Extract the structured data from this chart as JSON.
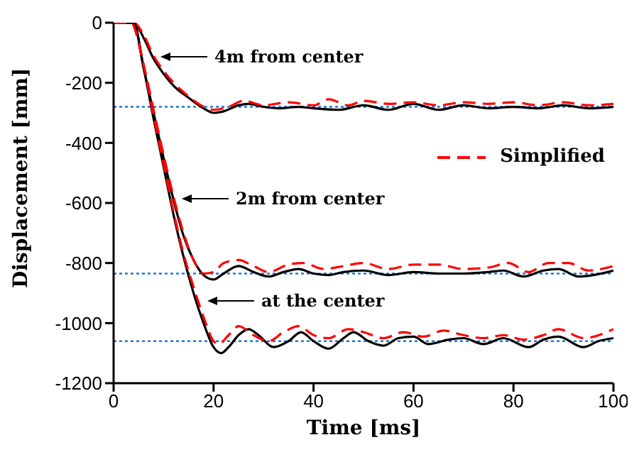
{
  "chart_data": {
    "type": "line",
    "xlabel": "Time [ms]",
    "ylabel": "Displacement [mm]",
    "xlim": [
      0,
      100
    ],
    "ylim": [
      -1200,
      0
    ],
    "xticks": [
      0,
      20,
      40,
      60,
      80,
      100
    ],
    "yticks": [
      -1200,
      -1000,
      -800,
      -600,
      -400,
      -200,
      0
    ],
    "marker": "none",
    "legend": "right",
    "series": [
      {
        "color": "#000000",
        "line_style": "solid",
        "x": [
          0,
          4,
          6,
          8,
          10,
          12,
          15,
          18,
          20,
          22,
          25,
          27,
          30,
          33,
          37,
          40,
          45,
          50,
          55,
          60,
          65,
          70,
          75,
          80,
          85,
          90,
          95,
          100
        ],
        "values": [
          0,
          0,
          -50,
          -120,
          -170,
          -210,
          -250,
          -285,
          -300,
          -295,
          -275,
          -270,
          -280,
          -285,
          -280,
          -285,
          -290,
          -275,
          -290,
          -270,
          -290,
          -275,
          -285,
          -280,
          -285,
          -275,
          -285,
          -280
        ]
      },
      {
        "name": "Simplified",
        "color": "#ff0000",
        "line_style": "dashed",
        "x": [
          0,
          4,
          6,
          8,
          10,
          12,
          15,
          18,
          20,
          23,
          26,
          30,
          35,
          40,
          43,
          47,
          50,
          55,
          60,
          65,
          70,
          75,
          80,
          85,
          90,
          95,
          100
        ],
        "values": [
          0,
          0,
          -40,
          -110,
          -160,
          -200,
          -245,
          -280,
          -290,
          -280,
          -260,
          -275,
          -265,
          -275,
          -255,
          -275,
          -260,
          -270,
          -265,
          -275,
          -265,
          -270,
          -265,
          -275,
          -265,
          -275,
          -270
        ]
      },
      {
        "color": "#000000",
        "line_style": "solid",
        "x": [
          0,
          4,
          6,
          8,
          10,
          12,
          14,
          16,
          18,
          20,
          22,
          25,
          28,
          31,
          34,
          37,
          40,
          43,
          46,
          50,
          55,
          60,
          65,
          70,
          75,
          78,
          82,
          86,
          89,
          93,
          96,
          100
        ],
        "values": [
          0,
          0,
          -150,
          -300,
          -450,
          -590,
          -710,
          -790,
          -840,
          -855,
          -835,
          -810,
          -830,
          -845,
          -830,
          -820,
          -835,
          -840,
          -830,
          -825,
          -840,
          -830,
          -835,
          -835,
          -830,
          -825,
          -845,
          -825,
          -820,
          -845,
          -840,
          -825
        ]
      },
      {
        "color": "#ff0000",
        "line_style": "dashed",
        "x": [
          0,
          3.5,
          6,
          8,
          10,
          12,
          14,
          16,
          18,
          20,
          22,
          25,
          28,
          31,
          35,
          38,
          42,
          46,
          50,
          55,
          60,
          65,
          70,
          75,
          79,
          83,
          87,
          91,
          95,
          100
        ],
        "values": [
          0,
          0,
          -140,
          -290,
          -440,
          -580,
          -700,
          -790,
          -835,
          -830,
          -800,
          -790,
          -810,
          -830,
          -805,
          -800,
          -820,
          -810,
          -800,
          -820,
          -805,
          -805,
          -820,
          -815,
          -800,
          -830,
          -800,
          -800,
          -825,
          -810
        ]
      },
      {
        "color": "#000000",
        "line_style": "solid",
        "x": [
          0,
          4,
          6,
          8,
          10,
          12,
          14,
          16,
          18,
          20,
          21.5,
          23,
          25,
          27,
          29,
          32,
          35,
          37.5,
          40,
          43,
          46,
          48,
          51,
          54,
          57,
          60,
          63,
          67,
          70,
          74,
          78,
          83,
          86,
          89,
          94,
          97,
          100
        ],
        "values": [
          0,
          0,
          -150,
          -320,
          -480,
          -640,
          -780,
          -900,
          -1000,
          -1080,
          -1100,
          -1080,
          -1040,
          -1020,
          -1040,
          -1080,
          -1060,
          -1030,
          -1060,
          -1085,
          -1050,
          -1030,
          -1060,
          -1075,
          -1050,
          -1045,
          -1070,
          -1055,
          -1050,
          -1070,
          -1050,
          -1080,
          -1055,
          -1045,
          -1080,
          -1060,
          -1050
        ]
      },
      {
        "color": "#ff0000",
        "line_style": "dashed",
        "x": [
          0,
          3.5,
          6,
          8,
          10,
          12,
          14,
          16,
          18,
          20,
          21,
          23,
          25,
          28,
          31,
          34,
          37,
          40,
          43,
          47,
          50,
          54,
          58,
          62,
          66,
          70,
          74,
          78,
          82,
          86,
          89,
          94,
          100
        ],
        "values": [
          0,
          0,
          -140,
          -310,
          -470,
          -630,
          -770,
          -880,
          -980,
          -1060,
          -1070,
          -1040,
          -1010,
          -1040,
          -1060,
          -1030,
          -1010,
          -1040,
          -1050,
          -1020,
          -1030,
          -1050,
          -1030,
          -1045,
          -1025,
          -1040,
          -1050,
          -1040,
          -1055,
          -1040,
          -1020,
          -1050,
          -1020
        ]
      }
    ],
    "ref_lines": [
      {
        "axis": "y",
        "value": -280,
        "color": "#1f77d0",
        "line_style": "dotted"
      },
      {
        "axis": "y",
        "value": -835,
        "color": "#1f77d0",
        "line_style": "dotted"
      },
      {
        "axis": "y",
        "value": -1060,
        "color": "#1f77d0",
        "line_style": "dotted"
      }
    ],
    "annotations": [
      "4m from center",
      "2m from center",
      "at the center"
    ]
  }
}
